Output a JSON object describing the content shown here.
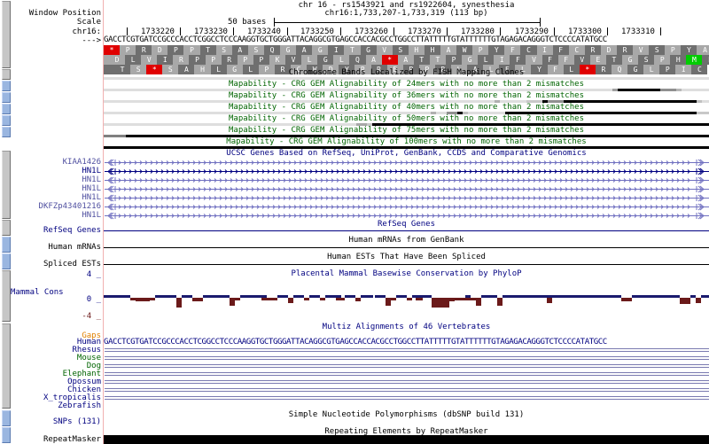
{
  "header": {
    "title": "chr 16 - rs1543921 and rs1922604, synesthesia",
    "position": "chr16:1,733,207-1,733,319 (113 bp)",
    "scale_label": "50 bases"
  },
  "left_labels": {
    "window_position": "Window Position",
    "scale": "Scale",
    "chrom": "chr16:",
    "strand_arrow": "--->"
  },
  "ruler": {
    "ticks": [
      "1733220",
      "1733230",
      "1733240",
      "1733250",
      "1733260",
      "1733270",
      "1733280",
      "1733290",
      "1733300",
      "1733310"
    ]
  },
  "sequence": "GACCTCGTGATCCGCCCACCTCGGCCTCCCAAGGTGCTGGGATTACAGGCGTGAGCCACCACGCCTGGCCTTATTTTTGTATTTTTTGTAGAGACAGGGTCTCCCCATATGCC",
  "translation": {
    "frame1": [
      "*",
      "P",
      "R",
      "D",
      "P",
      "P",
      "T",
      "S",
      "A",
      "S",
      "Q",
      "G",
      "A",
      "G",
      "I",
      "T",
      "G",
      "V",
      "S",
      "H",
      "H",
      "A",
      "W",
      "P",
      "Y",
      "F",
      "C",
      "I",
      "F",
      "C",
      "R",
      "D",
      "R",
      "V",
      "S",
      "P",
      "Y",
      "A"
    ],
    "frame2": [
      "D",
      "L",
      "V",
      "I",
      "R",
      "P",
      "P",
      "R",
      "P",
      "P",
      "K",
      "V",
      "L",
      "G",
      "L",
      "Q",
      "A",
      "*",
      "A",
      "T",
      "T",
      "P",
      "G",
      "L",
      "I",
      "F",
      "V",
      "F",
      "F",
      "V",
      "E",
      "T",
      "G",
      "S",
      "P",
      "H",
      "M",
      "P"
    ],
    "frame3": [
      "T",
      "S",
      "*",
      "S",
      "A",
      "H",
      "L",
      "G",
      "L",
      "P",
      "R",
      "C",
      "W",
      "D",
      "Y",
      "R",
      "R",
      "E",
      "P",
      "P",
      "R",
      "L",
      "A",
      "L",
      "F",
      "L",
      "Y",
      "F",
      "L",
      "*",
      "R",
      "Q",
      "G",
      "L",
      "P",
      "I",
      "C"
    ]
  },
  "tracks": {
    "fish_clones": "Chromosome Bands Localized by FISH Mapping Clones",
    "mapability": [
      "Mapability - CRG GEM Alignability of 24mers with no more than 2 mismatches",
      "Mapability - CRG GEM Alignability of 36mers with no more than 2 mismatches",
      "Mapability - CRG GEM Alignability of 40mers with no more than 2 mismatches",
      "Mapability - CRG GEM Alignability of 50mers with no more than 2 mismatches",
      "Mapability - CRG GEM Alignability of 75mers with no more than 2 mismatches",
      "Mapability - CRG GEM Alignability of 100mers with no more than 2 mismatches"
    ],
    "ucsc_genes": {
      "title": "UCSC Genes Based on RefSeq, UniProt, GenBank, CCDS and Comparative Genomics",
      "genes": [
        "KIAA1426",
        "HN1L",
        "HN1L",
        "HN1L",
        "HN1L",
        "DKFZp43401216",
        "HN1L"
      ]
    },
    "refseq": {
      "label": "RefSeq Genes",
      "title": "RefSeq Genes"
    },
    "mrna": {
      "label": "Human mRNAs",
      "title": "Human mRNAs from GenBank"
    },
    "ests": {
      "label": "Spliced ESTs",
      "title": "Human ESTs That Have Been Spliced"
    },
    "conservation": {
      "label": "Mammal Cons",
      "title": "Placental Mammal Basewise Conservation by PhyloP",
      "y_max": "4 _",
      "y_zero": "0 _",
      "y_min": "-4 _"
    },
    "multiz": {
      "title": "Multiz Alignments of 46 Vertebrates",
      "gaps_label": "Gaps",
      "species": [
        {
          "name": "Human",
          "color": "#000080"
        },
        {
          "name": "Rhesus",
          "color": "#000080"
        },
        {
          "name": "Mouse",
          "color": "#006400"
        },
        {
          "name": "Dog",
          "color": "#006400"
        },
        {
          "name": "Elephant",
          "color": "#006400"
        },
        {
          "name": "Opossum",
          "color": "#000080"
        },
        {
          "name": "Chicken",
          "color": "#000080"
        },
        {
          "name": "X_tropicalis",
          "color": "#000080"
        },
        {
          "name": "Zebrafish",
          "color": "#000080"
        }
      ]
    },
    "snps": {
      "label": "SNPs (131)",
      "title": "Simple Nucleotide Polymorphisms (dbSNP build 131)"
    },
    "repeatmasker": {
      "label": "RepeatMasker",
      "title": "Repeating Elements by RepeatMasker"
    }
  },
  "colors": {
    "sidebar_gray": "#c6c6c6",
    "sidebar_blue": "#9ab6e0",
    "divider": "#f0b0b0",
    "stop_codon": "#e00000",
    "start_codon": "#00cc00",
    "mapability_text": "#006400",
    "gene_color": "#7070c0",
    "cons_positive": "#1a1a6e",
    "cons_negative": "#6b1a1a",
    "gaps_label": "#e08000"
  }
}
